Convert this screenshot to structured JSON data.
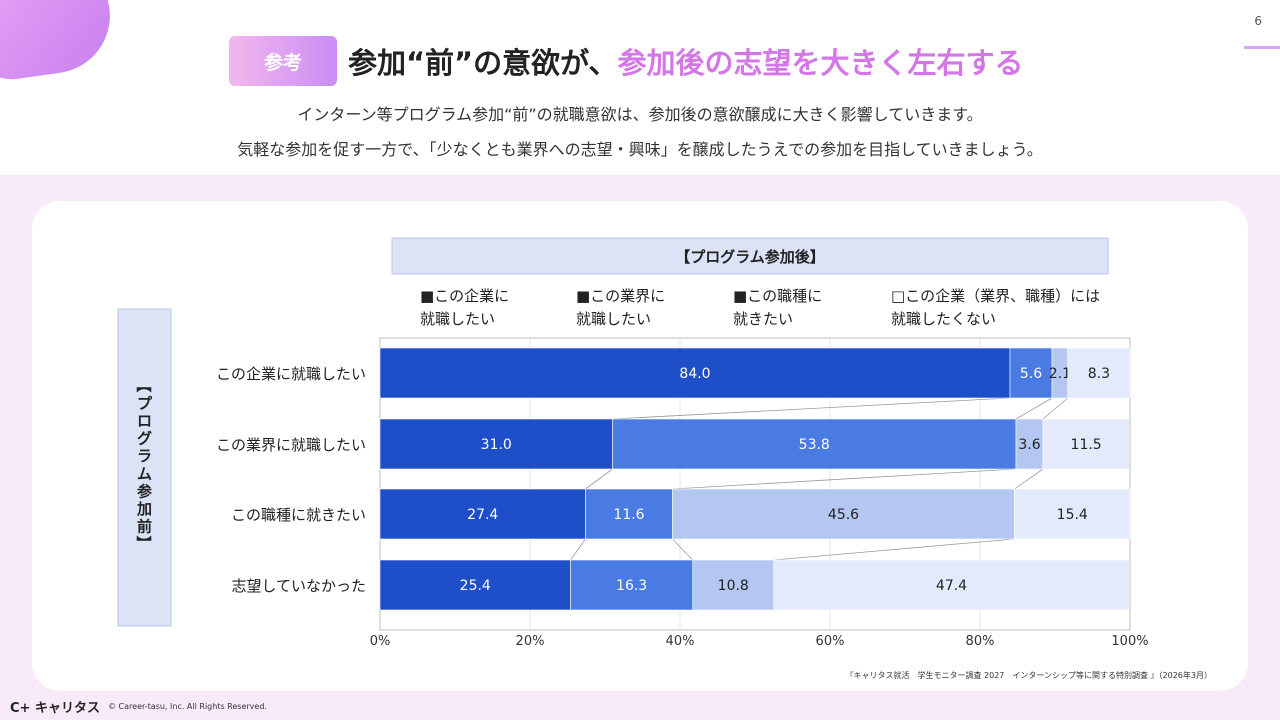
{
  "page": {
    "number": "6",
    "badge": "参考",
    "title_main": "参加“前”の意欲が、",
    "title_highlight": "参加後の志望を大きく左右する",
    "subtitle_line1": "インターン等プログラム参加“前”の就職意欲は、参加後の意欲醸成に大きく影響していきます。",
    "subtitle_line2": "気軽な参加を促す一方で、「少なくとも業界への志望・興味」を醸成したうえでの参加を目指していきましょう。",
    "source": "『キャリタス就活　学生モニター調査 2027　インターンシップ等に関する特別調査 』（2026年3月）",
    "logo": "キャリタス",
    "copyright": "© Career-tasu, Inc. All Rights Reserved."
  },
  "chart_data": {
    "type": "bar",
    "orientation": "horizontal-stacked-100",
    "header_label": "【プログラム参加後】",
    "side_label": "【プログラム参加前】",
    "categories": [
      "この企業に就職したい",
      "この業界に就職したい",
      "この職種に就きたい",
      "志望していなかった"
    ],
    "series": [
      {
        "name": "この企業に就職したい",
        "legend_lines": [
          "■この企業に",
          "就職したい"
        ],
        "color": "#1f4ec9",
        "text_color": "#ffffff",
        "values": [
          84.0,
          31.0,
          27.4,
          25.4
        ]
      },
      {
        "name": "この業界に就職したい",
        "legend_lines": [
          "■この業界に",
          "就職したい"
        ],
        "color": "#4a7be3",
        "text_color": "#ffffff",
        "values": [
          5.6,
          53.8,
          11.6,
          16.3
        ]
      },
      {
        "name": "この職種に就きたい",
        "legend_lines": [
          "■この職種に",
          "就きたい"
        ],
        "color": "#b4c7f2",
        "text_color": "#222222",
        "values": [
          2.1,
          3.6,
          45.6,
          10.8
        ]
      },
      {
        "name": "この企業（業界、職種）には就職したくない",
        "legend_lines": [
          "□この企業（業界、職種）には",
          "就職したくない"
        ],
        "color": "#e3eafb",
        "text_color": "#222222",
        "values": [
          8.3,
          11.5,
          15.4,
          47.4
        ]
      }
    ],
    "x_ticks": [
      "0%",
      "20%",
      "40%",
      "60%",
      "80%",
      "100%"
    ],
    "xlim": [
      0,
      100
    ]
  }
}
